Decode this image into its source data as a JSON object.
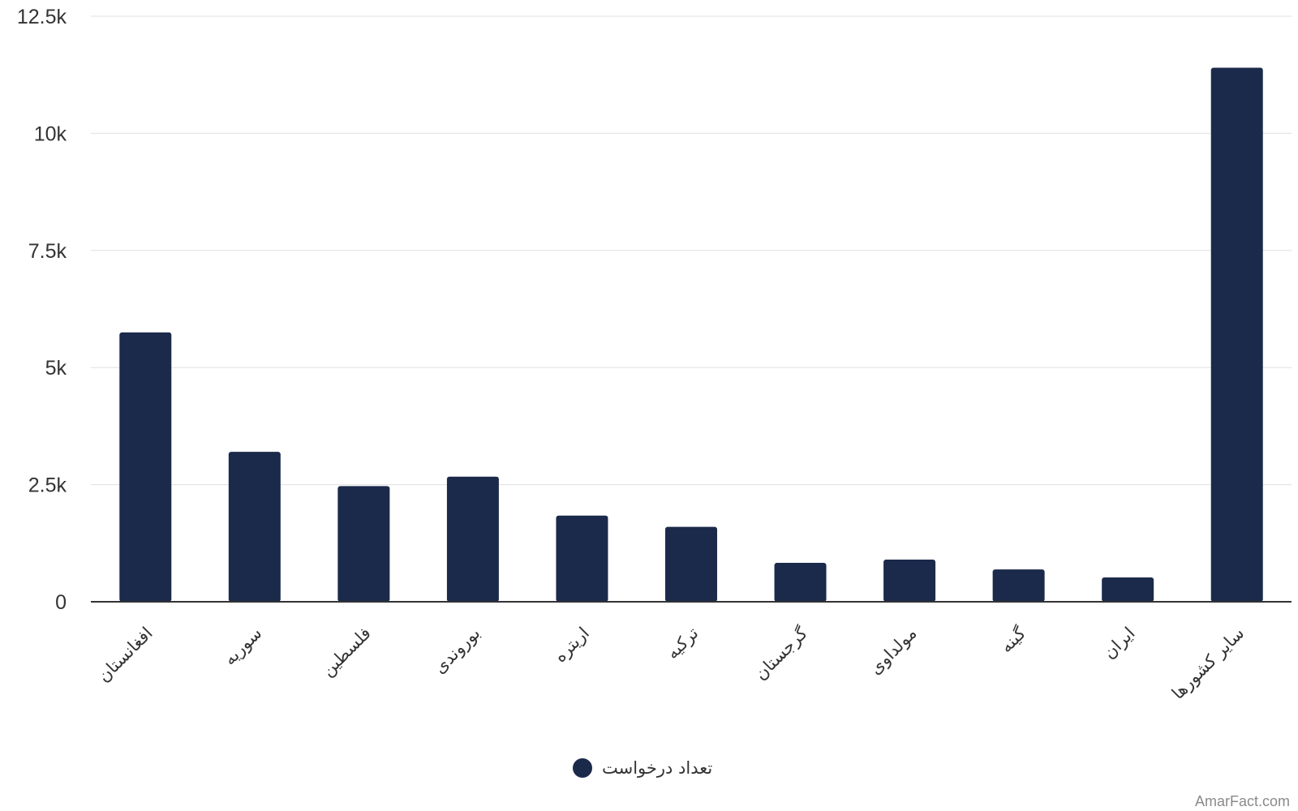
{
  "chart_data": {
    "type": "bar",
    "categories": [
      "افغانستان",
      "سوریه",
      "فلسطین",
      "بوروندی",
      "اریتره",
      "ترکیه",
      "گرجستان",
      "مولداوی",
      "گینه",
      "ایران",
      "سایر کشورها"
    ],
    "series": [
      {
        "name": "تعداد درخواست",
        "color": "#1b2a4a",
        "values": [
          5750,
          3200,
          2470,
          2670,
          1840,
          1600,
          830,
          900,
          690,
          520,
          11400
        ]
      }
    ],
    "ylim": [
      0,
      12500
    ],
    "yticks": [
      0,
      2500,
      5000,
      7500,
      10000,
      12500
    ],
    "ytick_labels": [
      "0",
      "2.5k",
      "5k",
      "7.5k",
      "10k",
      "12.5k"
    ],
    "grid": true,
    "legend_position": "bottom-center",
    "xlabel": "",
    "ylabel": "",
    "title": ""
  },
  "watermark": "AmarFact.com",
  "colors": {
    "bar": "#1b2a4a",
    "grid": "#e0e0e0",
    "axis": "#333333"
  }
}
